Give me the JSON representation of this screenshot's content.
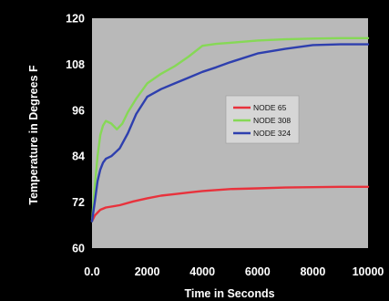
{
  "chart_data": {
    "type": "line",
    "title": "",
    "xlabel": "Time in Seconds",
    "ylabel": "Temperature in Degrees F",
    "xlim": [
      0,
      10000
    ],
    "ylim": [
      60,
      120
    ],
    "x_ticks": [
      0,
      2000,
      4000,
      6000,
      8000,
      10000
    ],
    "x_tick_labels": [
      "0.0",
      "2000",
      "4000",
      "6000",
      "8000",
      "10000"
    ],
    "y_ticks": [
      60,
      72,
      84,
      96,
      108,
      120
    ],
    "y_tick_labels": [
      "60",
      "72",
      "84",
      "96",
      "108",
      "120"
    ],
    "grid": false,
    "legend_position": "right-center",
    "background_color": "#000000",
    "plot_background_color": "#b9b9b9",
    "series": [
      {
        "name": "NODE 65",
        "color": "#e8323c",
        "x": [
          0,
          100,
          300,
          500,
          1000,
          1500,
          2000,
          2500,
          3000,
          3500,
          4000,
          5000,
          6000,
          7000,
          8000,
          9000,
          10000
        ],
        "y": [
          67,
          68.5,
          70,
          70.6,
          71.2,
          72.2,
          73.0,
          73.7,
          74.1,
          74.5,
          74.9,
          75.4,
          75.6,
          75.8,
          75.9,
          76.0,
          76.0
        ]
      },
      {
        "name": "NODE 308",
        "color": "#86d856",
        "x": [
          0,
          100,
          200,
          300,
          400,
          500,
          700,
          900,
          1100,
          1300,
          1600,
          2000,
          2500,
          3000,
          3500,
          4000,
          4500,
          5000,
          6000,
          7000,
          8000,
          9000,
          10000
        ],
        "y": [
          67,
          76,
          84,
          89.5,
          92,
          93.2,
          92.5,
          91,
          92.5,
          95.5,
          99,
          103,
          105.5,
          107.5,
          110,
          112.8,
          113.3,
          113.6,
          114.2,
          114.5,
          114.7,
          114.8,
          114.8
        ]
      },
      {
        "name": "NODE 324",
        "color": "#2e3fae",
        "x": [
          0,
          100,
          200,
          300,
          400,
          500,
          700,
          1000,
          1300,
          1600,
          2000,
          2500,
          3000,
          3500,
          4000,
          4500,
          5000,
          6000,
          7000,
          8000,
          9000,
          10000
        ],
        "y": [
          67,
          72,
          77.5,
          80.5,
          82.3,
          83.3,
          84,
          86,
          90,
          95,
          99.5,
          101.5,
          103,
          104.5,
          106,
          107.2,
          108.5,
          110.8,
          112,
          113,
          113.2,
          113.2
        ]
      }
    ]
  }
}
